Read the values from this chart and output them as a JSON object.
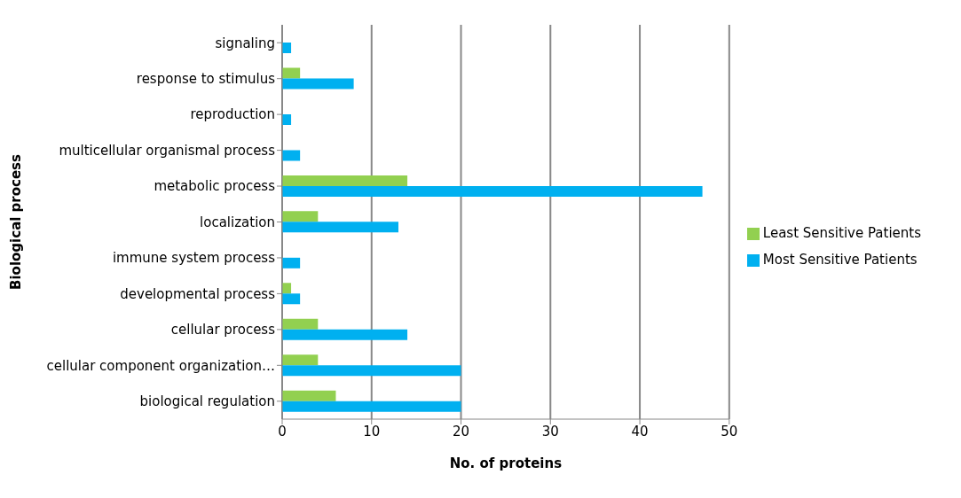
{
  "chart_data": {
    "type": "bar",
    "orientation": "horizontal",
    "xlabel": "No. of proteins",
    "ylabel": "Biological process",
    "categories": [
      "signaling",
      "response to stimulus",
      "reproduction",
      "multicellular organismal process",
      "metabolic process",
      "localization",
      "immune system process",
      "developmental process",
      "cellular process",
      "cellular component organization…",
      "biological regulation"
    ],
    "series": [
      {
        "name": "Least Sensitive Patients",
        "color": "#92d050",
        "values": [
          0,
          2,
          0,
          0,
          14,
          4,
          0,
          1,
          4,
          4,
          6
        ]
      },
      {
        "name": "Most Sensitive Patients",
        "color": "#00b0f0",
        "values": [
          1,
          8,
          1,
          2,
          47,
          13,
          2,
          2,
          14,
          20,
          20
        ]
      }
    ],
    "xlim": [
      0,
      50
    ],
    "xticks": [
      0,
      10,
      20,
      30,
      40,
      50
    ],
    "grid": "x",
    "legend": "right"
  }
}
